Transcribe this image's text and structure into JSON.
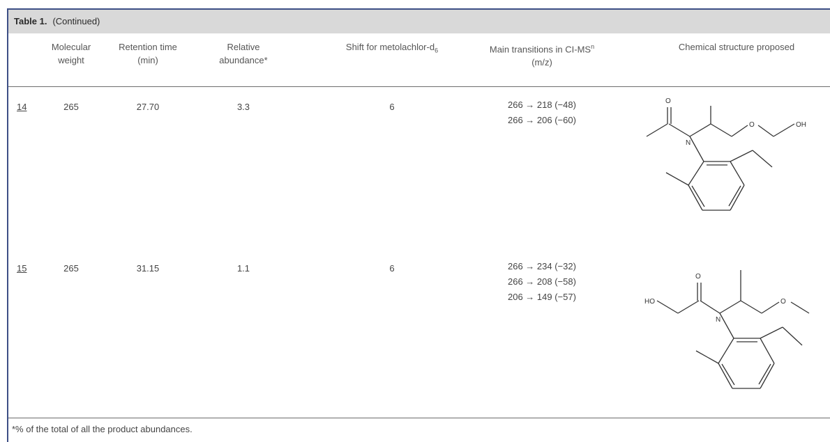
{
  "table": {
    "title_bold": "Table 1.",
    "title_rest": "(Continued)",
    "headers": {
      "molecular_weight": [
        "Molecular",
        "weight"
      ],
      "retention_time": [
        "Retention time",
        "(min)"
      ],
      "relative_abundance": [
        "Relative",
        "abundance*"
      ],
      "shift": "Shift for metolachlor-d",
      "shift_sub": "6",
      "transitions": "Main transitions in CI-MS",
      "transitions_sup": "n",
      "transitions_unit": "(m/z)",
      "structure": "Chemical structure proposed"
    },
    "rows": [
      {
        "id": "14",
        "molecular_weight": "265",
        "retention_time": "27.70",
        "relative_abundance": "3.3",
        "shift": "6",
        "transitions": [
          "266 → 218 (−48)",
          "266 → 206 (−60)"
        ],
        "structure_labels": {
          "o": "O",
          "o2": "O",
          "oh": "OH",
          "n": "N"
        }
      },
      {
        "id": "15",
        "molecular_weight": "265",
        "retention_time": "31.15",
        "relative_abundance": "1.1",
        "shift": "6",
        "transitions": [
          "266 → 234 (−32)",
          "266 → 208 (−58)",
          "206 → 149 (−57)"
        ],
        "structure_labels": {
          "o": "O",
          "o2": "O",
          "ho": "HO",
          "n": "N"
        }
      }
    ],
    "footnote": "*% of the total of all the product abundances."
  }
}
